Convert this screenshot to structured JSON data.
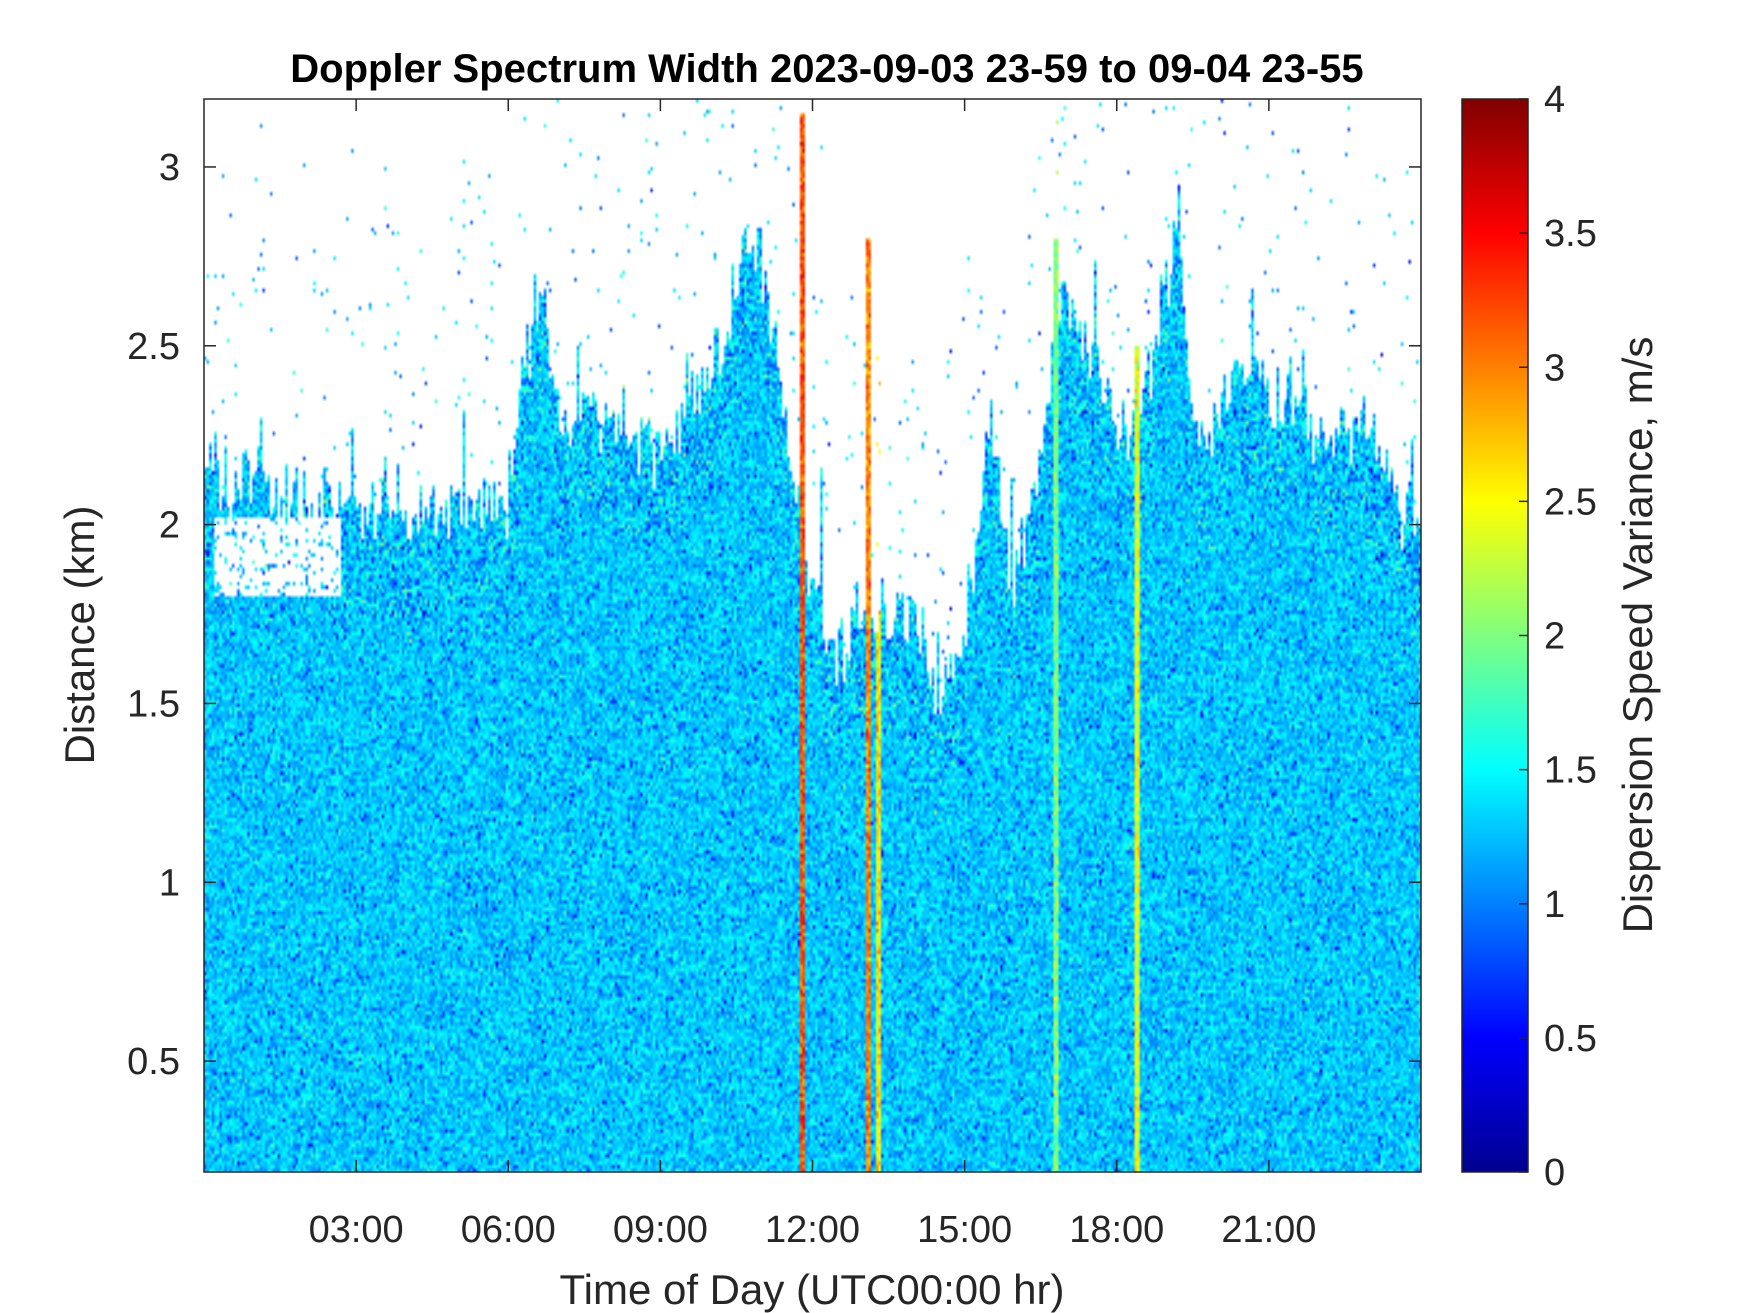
{
  "chart_data": {
    "type": "heatmap",
    "title": "Doppler Spectrum Width 2023-09-03 23-59 to 09-04 23-55",
    "xlabel": "Time of Day (UTC00:00 hr)",
    "ylabel": "Distance (km)",
    "xlim": [
      0,
      24
    ],
    "ylim": [
      0.19,
      3.19
    ],
    "xticks": [
      3,
      6,
      9,
      12,
      15,
      18,
      21
    ],
    "xtick_labels": [
      "03:00",
      "06:00",
      "09:00",
      "12:00",
      "15:00",
      "18:00",
      "21:00"
    ],
    "yticks": [
      0.5,
      1,
      1.5,
      2,
      2.5,
      3
    ],
    "ytick_labels": [
      "0.5",
      "1",
      "1.5",
      "2",
      "2.5",
      "3"
    ],
    "colorbar": {
      "label": "Dispersion Speed Variance, m/s",
      "colormap": "jet",
      "clim": [
        0,
        4
      ],
      "ticks": [
        0,
        0.5,
        1,
        1.5,
        2,
        2.5,
        3,
        3.5,
        4
      ],
      "tick_labels": [
        "0",
        "0.5",
        "1",
        "1.5",
        "2",
        "2.5",
        "3",
        "3.5",
        "4"
      ]
    },
    "typical_value": 1.3,
    "signal_top_km": {
      "time_hr": [
        0,
        1,
        2,
        3,
        4,
        5,
        6,
        6.6,
        7,
        8,
        9,
        10,
        10.6,
        11,
        11.5,
        11.8,
        12.2,
        12.6,
        13,
        13.5,
        14,
        14.5,
        15,
        15.5,
        16,
        16.5,
        17,
        17.5,
        18,
        18.5,
        19,
        19.2,
        19.5,
        20,
        20.5,
        21,
        21.5,
        22,
        22.5,
        23,
        23.5,
        24
      ],
      "height_km": [
        2.15,
        2.12,
        2.05,
        2.05,
        2.05,
        2.02,
        2.1,
        2.7,
        2.3,
        2.3,
        2.25,
        2.4,
        2.75,
        2.75,
        2.3,
        2.0,
        1.75,
        1.65,
        1.7,
        1.75,
        1.75,
        1.55,
        1.65,
        2.3,
        1.8,
        2.2,
        2.7,
        2.4,
        2.3,
        2.3,
        2.7,
        2.9,
        2.25,
        2.3,
        2.5,
        2.35,
        2.35,
        2.2,
        2.3,
        2.3,
        2.05,
        2.0
      ]
    },
    "missing_region": {
      "time_hr": [
        0.2,
        2.7
      ],
      "height_km": [
        1.8,
        2.02
      ]
    },
    "high_value_streaks": [
      {
        "time_hr": 11.8,
        "value": 3.2,
        "top_km": 3.15
      },
      {
        "time_hr": 13.1,
        "value": 3.0,
        "top_km": 2.8
      },
      {
        "time_hr": 13.3,
        "value": 2.6,
        "top_km": 1.7
      },
      {
        "time_hr": 18.4,
        "value": 2.4,
        "top_km": 2.5
      },
      {
        "time_hr": 16.8,
        "value": 2.0,
        "top_km": 2.8
      }
    ]
  }
}
